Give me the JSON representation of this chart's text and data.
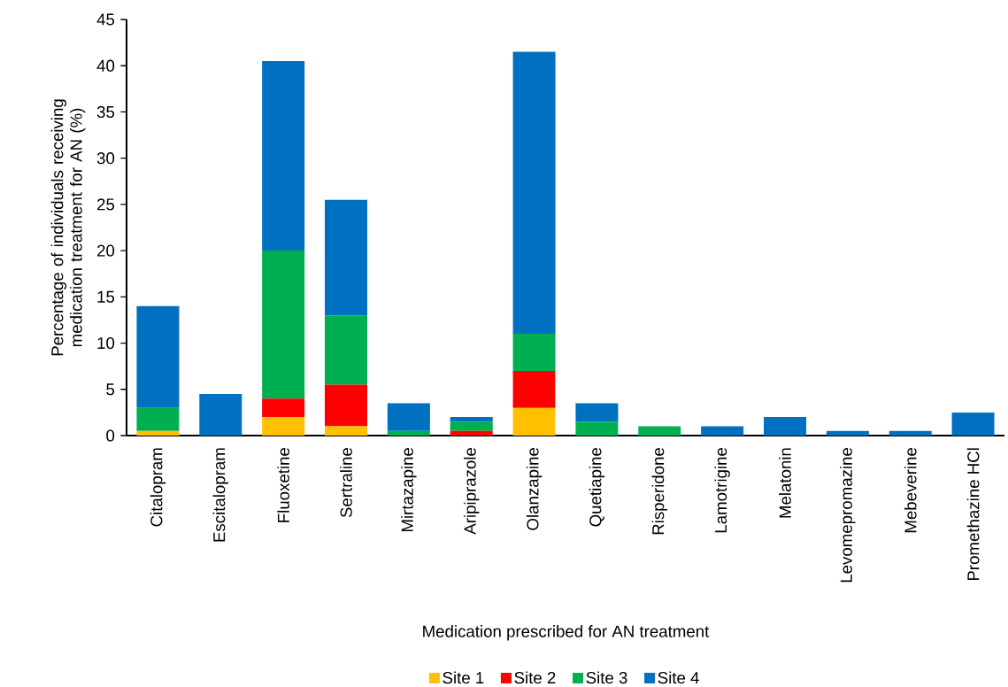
{
  "chart_data": {
    "type": "bar",
    "stacked": true,
    "xlabel": "Medication prescribed for AN treatment",
    "ylabel": "Percentage of individuals receiving medication treatment for AN (%)",
    "categories": [
      "Citalopram",
      "Escitalopram",
      "Fluoxetine",
      "Sertraline",
      "Mirtazapine",
      "Aripiprazole",
      "Olanzapine",
      "Quetiapine",
      "Risperidone",
      "Lamotrigine",
      "Melatonin",
      "Levomepromazine",
      "Mebeverine",
      "Promethazine HCl"
    ],
    "series": [
      {
        "name": "Site 1",
        "color": "#ffc000",
        "values": [
          0.5,
          0,
          2,
          1,
          0,
          0,
          3,
          0,
          0,
          0,
          0,
          0,
          0,
          0
        ]
      },
      {
        "name": "Site 2",
        "color": "#ff0000",
        "values": [
          0,
          0,
          2,
          4.5,
          0,
          0.5,
          4,
          0,
          0,
          0,
          0,
          0,
          0,
          0
        ]
      },
      {
        "name": "Site 3",
        "color": "#00b050",
        "values": [
          2.5,
          0,
          16,
          7.5,
          0.5,
          1,
          4,
          1.5,
          1,
          0,
          0,
          0,
          0,
          0
        ]
      },
      {
        "name": "Site 4",
        "color": "#0070c0",
        "values": [
          11,
          4.5,
          20.5,
          12.5,
          3,
          0.5,
          30.5,
          2,
          0,
          1,
          2,
          0.5,
          0.5,
          2.5
        ]
      }
    ],
    "ylim": [
      0,
      45
    ],
    "yticks": [
      0,
      5,
      10,
      15,
      20,
      25,
      30,
      35,
      40,
      45
    ],
    "grid": false,
    "legend": "bottom"
  }
}
